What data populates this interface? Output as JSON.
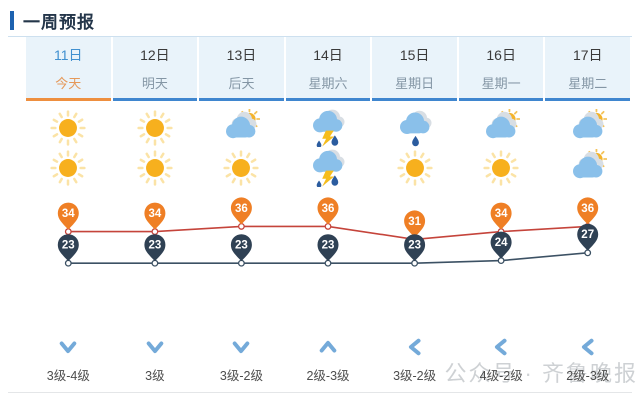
{
  "page": {
    "title": "一周预报"
  },
  "colors": {
    "accent": "#1d62b0",
    "cell_bg": "#e9f3fa",
    "tab_underline": "#3f86cf",
    "tab_underline_today": "#ee8f3f",
    "date_text": "#3a3a3a",
    "week_text": "#8496a5",
    "today_date_text": "#4090d0",
    "today_week_text": "#e5995a",
    "high_line": "#c5443b",
    "high_marker": "#ef7f25",
    "low_line": "#3c5164",
    "low_marker": "#2f4154",
    "wind_arrow": "#74aad9",
    "sun_core": "#f7b01e",
    "sun_ray": "#fbe3a6",
    "cloud_front": "#8ac0ea",
    "cloud_back": "#d8dee4",
    "rain_drop": "#2b5c9f",
    "bolt": "#f5bd1d"
  },
  "days": [
    {
      "date": "11日",
      "weekday": "今天",
      "today": true,
      "day_icon": "sunny",
      "night_icon": "sunny",
      "high": 34,
      "low": 23,
      "wind_direction": "down",
      "wind_level": "3级-4级"
    },
    {
      "date": "12日",
      "weekday": "明天",
      "today": false,
      "day_icon": "sunny",
      "night_icon": "sunny",
      "high": 34,
      "low": 23,
      "wind_direction": "down",
      "wind_level": "3级"
    },
    {
      "date": "13日",
      "weekday": "后天",
      "today": false,
      "day_icon": "cloudy-sun",
      "night_icon": "sunny",
      "high": 36,
      "low": 23,
      "wind_direction": "down",
      "wind_level": "3级-2级"
    },
    {
      "date": "14日",
      "weekday": "星期六",
      "today": false,
      "day_icon": "thunderstorm",
      "night_icon": "thunderstorm",
      "high": 36,
      "low": 23,
      "wind_direction": "up",
      "wind_level": "2级-3级"
    },
    {
      "date": "15日",
      "weekday": "星期日",
      "today": false,
      "day_icon": "rain",
      "night_icon": "sunny",
      "high": 31,
      "low": 23,
      "wind_direction": "left",
      "wind_level": "3级-2级"
    },
    {
      "date": "16日",
      "weekday": "星期一",
      "today": false,
      "day_icon": "cloudy-sun",
      "night_icon": "sunny",
      "high": 34,
      "low": 24,
      "wind_direction": "left",
      "wind_level": "4级-2级"
    },
    {
      "date": "17日",
      "weekday": "星期二",
      "today": false,
      "day_icon": "cloudy-sun",
      "night_icon": "cloudy-sun",
      "high": 36,
      "low": 27,
      "wind_direction": "left",
      "wind_level": "2级-3级"
    }
  ],
  "chart_data": {
    "type": "line",
    "categories": [
      "11日",
      "12日",
      "13日",
      "14日",
      "15日",
      "16日",
      "17日"
    ],
    "series": [
      {
        "name": "high",
        "values": [
          34,
          34,
          36,
          36,
          31,
          34,
          36
        ]
      },
      {
        "name": "low",
        "values": [
          23,
          23,
          23,
          23,
          23,
          24,
          27
        ]
      }
    ],
    "ylim": [
      23,
      36
    ],
    "grid": false,
    "legend": "none"
  },
  "watermark": {
    "text": "公众号 · 齐鲁晚报"
  }
}
